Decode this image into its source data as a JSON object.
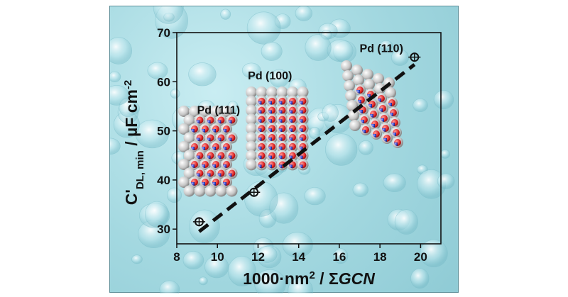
{
  "chart_data": {
    "type": "scatter",
    "xlabel": "1000·nm² / ΣGCN",
    "ylabel": "C'DL, min / µF cm⁻²",
    "xlim": [
      8,
      21
    ],
    "ylim": [
      27,
      70
    ],
    "x_ticks": [
      8,
      10,
      12,
      14,
      16,
      18,
      20
    ],
    "y_ticks": [
      30,
      40,
      50,
      60,
      70
    ],
    "grid": false,
    "series": [
      {
        "points": [
          {
            "x": 9.1,
            "y": 31.5,
            "xerr": 0.3,
            "yerr": 0.8
          },
          {
            "x": 11.8,
            "y": 37.5,
            "xerr": 0.3,
            "yerr": 0.8
          },
          {
            "x": 19.7,
            "y": 65.0,
            "xerr": 0.3,
            "yerr": 0.8
          }
        ]
      }
    ],
    "fit_line": {
      "x": [
        9.1,
        19.7
      ],
      "y": [
        29.5,
        63.5
      ],
      "style": "dashed"
    },
    "annotations": [
      {
        "text": "Pd (111)",
        "x": 9.0,
        "y": 53.5
      },
      {
        "text": "Pd (100)",
        "x": 11.5,
        "y": 60.5
      },
      {
        "text": "Pd (110)",
        "x": 17.0,
        "y": 66.0
      }
    ],
    "colors": {
      "background": "#a3d8e0",
      "marker": "#111111",
      "atom_surface": "#e03030",
      "atom_inner": "#3a4fd0",
      "atom_bulk": "#c0c0c0"
    }
  }
}
